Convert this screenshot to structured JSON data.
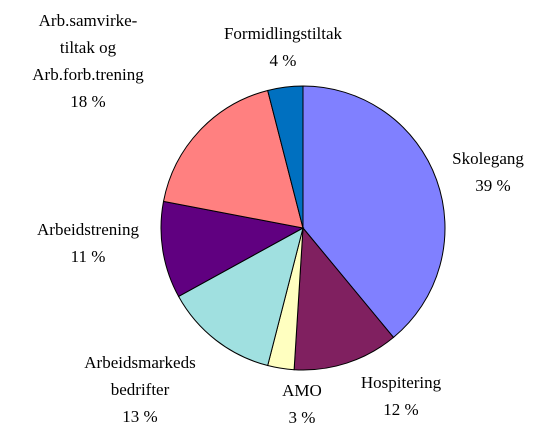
{
  "chart_data": {
    "type": "pie",
    "categories": [
      [
        "Skolegang"
      ],
      [
        "Hospitering"
      ],
      [
        "AMO"
      ],
      [
        "Arbeidsmarkeds",
        "bedrifter"
      ],
      [
        "Arbeidstrening"
      ],
      [
        "Arb.samvirke-",
        "tiltak og",
        "Arb.forb.trening"
      ],
      [
        "Formidlingstiltak"
      ]
    ],
    "values": [
      39,
      12,
      3,
      13,
      11,
      18,
      4
    ],
    "value_labels": [
      "39 %",
      "12 %",
      "3 %",
      "13 %",
      "11 %",
      "18 %",
      "4 %"
    ],
    "colors": [
      "#8080ff",
      "#802060",
      "#ffffc0",
      "#a0e0e0",
      "#600080",
      "#ff8080",
      "#0070c0"
    ]
  }
}
